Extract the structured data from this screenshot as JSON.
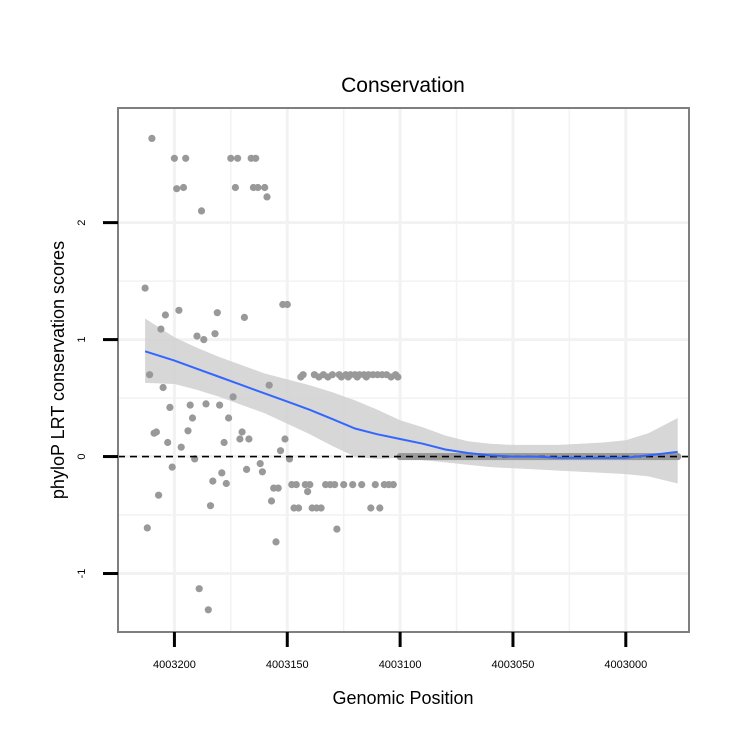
{
  "chart_data": {
    "type": "scatter",
    "title": "Conservation",
    "xlabel": "Genomic Position",
    "ylabel": "phyloP LRT conservation scores",
    "x_reversed": true,
    "xlim": [
      4003225,
      4002972
    ],
    "ylim": [
      -1.5,
      2.98
    ],
    "x_ticks": [
      4003200,
      4003150,
      4003100,
      4003050,
      4003000
    ],
    "x_tick_labels": [
      "4003200",
      "4003150",
      "4003100",
      "4003050",
      "4003000"
    ],
    "y_ticks": [
      -1,
      0,
      1,
      2
    ],
    "y_tick_labels": [
      "-1",
      "0",
      "1",
      "2"
    ],
    "reference_line": {
      "y": 0,
      "style": "dashed"
    },
    "colors": {
      "points": "#999999",
      "smooth": "#3366ff",
      "ribbon": "#d0d0d0",
      "panel_border": "#7f7f7f",
      "grid": "#f2f2f2"
    },
    "points": [
      {
        "x": 4003213,
        "y": 1.44
      },
      {
        "x": 4003212,
        "y": -0.61
      },
      {
        "x": 4003211,
        "y": 0.7
      },
      {
        "x": 4003210,
        "y": 2.72
      },
      {
        "x": 4003209,
        "y": 0.2
      },
      {
        "x": 4003208,
        "y": 0.21
      },
      {
        "x": 4003207,
        "y": -0.33
      },
      {
        "x": 4003206,
        "y": 1.09
      },
      {
        "x": 4003205,
        "y": 0.59
      },
      {
        "x": 4003204,
        "y": 1.21
      },
      {
        "x": 4003203,
        "y": 0.12
      },
      {
        "x": 4003202,
        "y": 0.42
      },
      {
        "x": 4003201,
        "y": -0.09
      },
      {
        "x": 4003200,
        "y": 2.55
      },
      {
        "x": 4003199,
        "y": 2.29
      },
      {
        "x": 4003198,
        "y": 1.25
      },
      {
        "x": 4003197,
        "y": 0.08
      },
      {
        "x": 4003196,
        "y": 2.3
      },
      {
        "x": 4003195,
        "y": 2.55
      },
      {
        "x": 4003194,
        "y": 0.22
      },
      {
        "x": 4003193,
        "y": 0.44
      },
      {
        "x": 4003192,
        "y": 0.33
      },
      {
        "x": 4003191,
        "y": -0.02
      },
      {
        "x": 4003190,
        "y": 1.03
      },
      {
        "x": 4003189,
        "y": -1.13
      },
      {
        "x": 4003188,
        "y": 2.1
      },
      {
        "x": 4003187,
        "y": 1.0
      },
      {
        "x": 4003186,
        "y": 0.45
      },
      {
        "x": 4003185,
        "y": -1.31
      },
      {
        "x": 4003184,
        "y": -0.42
      },
      {
        "x": 4003183,
        "y": -0.21
      },
      {
        "x": 4003182,
        "y": 1.05
      },
      {
        "x": 4003181,
        "y": 1.23
      },
      {
        "x": 4003180,
        "y": 0.44
      },
      {
        "x": 4003179,
        "y": -0.14
      },
      {
        "x": 4003178,
        "y": 0.12
      },
      {
        "x": 4003177,
        "y": -0.23
      },
      {
        "x": 4003176,
        "y": 0.33
      },
      {
        "x": 4003175,
        "y": 2.55
      },
      {
        "x": 4003174,
        "y": 0.51
      },
      {
        "x": 4003173,
        "y": 2.3
      },
      {
        "x": 4003172,
        "y": 2.55
      },
      {
        "x": 4003171,
        "y": 0.15
      },
      {
        "x": 4003170,
        "y": 0.21
      },
      {
        "x": 4003169,
        "y": 1.19
      },
      {
        "x": 4003168,
        "y": -0.11
      },
      {
        "x": 4003167,
        "y": 0.15
      },
      {
        "x": 4003166,
        "y": 2.55
      },
      {
        "x": 4003165,
        "y": 2.3
      },
      {
        "x": 4003164,
        "y": 2.55
      },
      {
        "x": 4003163,
        "y": 2.3
      },
      {
        "x": 4003162,
        "y": -0.06
      },
      {
        "x": 4003161,
        "y": -0.13
      },
      {
        "x": 4003160,
        "y": 2.3
      },
      {
        "x": 4003159,
        "y": 2.22
      },
      {
        "x": 4003158,
        "y": 0.61
      },
      {
        "x": 4003157,
        "y": -0.38
      },
      {
        "x": 4003156,
        "y": -0.27
      },
      {
        "x": 4003155,
        "y": -0.73
      },
      {
        "x": 4003154,
        "y": -0.27
      },
      {
        "x": 4003153,
        "y": 0.05
      },
      {
        "x": 4003152,
        "y": 1.3
      },
      {
        "x": 4003151,
        "y": 0.15
      },
      {
        "x": 4003150,
        "y": 1.3
      },
      {
        "x": 4003149,
        "y": -0.02
      },
      {
        "x": 4003148,
        "y": -0.24
      },
      {
        "x": 4003147,
        "y": -0.44
      },
      {
        "x": 4003146,
        "y": -0.24
      },
      {
        "x": 4003145,
        "y": -0.44
      },
      {
        "x": 4003144,
        "y": 0.68
      },
      {
        "x": 4003143,
        "y": 0.7
      },
      {
        "x": 4003142,
        "y": -0.24
      },
      {
        "x": 4003141,
        "y": -0.3
      },
      {
        "x": 4003140,
        "y": -0.24
      },
      {
        "x": 4003139,
        "y": -0.44
      },
      {
        "x": 4003138,
        "y": 0.7
      },
      {
        "x": 4003137,
        "y": -0.44
      },
      {
        "x": 4003136,
        "y": 0.68
      },
      {
        "x": 4003135,
        "y": -0.44
      },
      {
        "x": 4003134,
        "y": 0.7
      },
      {
        "x": 4003133,
        "y": -0.24
      },
      {
        "x": 4003132,
        "y": 0.68
      },
      {
        "x": 4003131,
        "y": -0.24
      },
      {
        "x": 4003130,
        "y": 0.7
      },
      {
        "x": 4003129,
        "y": -0.24
      },
      {
        "x": 4003128,
        "y": -0.62
      },
      {
        "x": 4003127,
        "y": 0.7
      },
      {
        "x": 4003126,
        "y": 0.68
      },
      {
        "x": 4003125,
        "y": -0.24
      },
      {
        "x": 4003124,
        "y": 0.7
      },
      {
        "x": 4003123,
        "y": 0.68
      },
      {
        "x": 4003122,
        "y": 0.7
      },
      {
        "x": 4003121,
        "y": -0.24
      },
      {
        "x": 4003120,
        "y": 0.7
      },
      {
        "x": 4003119,
        "y": 0.68
      },
      {
        "x": 4003118,
        "y": 0.7
      },
      {
        "x": 4003117,
        "y": -0.24
      },
      {
        "x": 4003116,
        "y": 0.7
      },
      {
        "x": 4003115,
        "y": 0.68
      },
      {
        "x": 4003114,
        "y": 0.7
      },
      {
        "x": 4003113,
        "y": -0.44
      },
      {
        "x": 4003112,
        "y": 0.7
      },
      {
        "x": 4003111,
        "y": -0.24
      },
      {
        "x": 4003110,
        "y": 0.7
      },
      {
        "x": 4003109,
        "y": -0.44
      },
      {
        "x": 4003108,
        "y": 0.7
      },
      {
        "x": 4003107,
        "y": -0.24
      },
      {
        "x": 4003106,
        "y": 0.7
      },
      {
        "x": 4003105,
        "y": -0.24
      },
      {
        "x": 4003104,
        "y": 0.68
      },
      {
        "x": 4003103,
        "y": -0.24
      },
      {
        "x": 4003102,
        "y": 0.7
      },
      {
        "x": 4003101,
        "y": 0.68
      },
      {
        "x": 4003100,
        "y": 0.0
      },
      {
        "x": 4003099,
        "y": 0.0
      },
      {
        "x": 4003098,
        "y": 0.0
      },
      {
        "x": 4003097,
        "y": 0.0
      },
      {
        "x": 4003096,
        "y": 0.0
      },
      {
        "x": 4003095,
        "y": 0.0
      },
      {
        "x": 4003094,
        "y": 0.0
      },
      {
        "x": 4003093,
        "y": 0.0
      },
      {
        "x": 4003092,
        "y": 0.0
      },
      {
        "x": 4003091,
        "y": 0.0
      },
      {
        "x": 4003090,
        "y": 0.0
      },
      {
        "x": 4003089,
        "y": 0.0
      },
      {
        "x": 4003088,
        "y": 0.0
      },
      {
        "x": 4003087,
        "y": 0.0
      },
      {
        "x": 4003086,
        "y": 0.0
      },
      {
        "x": 4003085,
        "y": 0.0
      },
      {
        "x": 4003084,
        "y": 0.0
      },
      {
        "x": 4003083,
        "y": 0.0
      },
      {
        "x": 4003082,
        "y": 0.0
      },
      {
        "x": 4003081,
        "y": 0.0
      },
      {
        "x": 4003080,
        "y": 0.0
      },
      {
        "x": 4003079,
        "y": 0.0
      },
      {
        "x": 4003078,
        "y": 0.0
      },
      {
        "x": 4003077,
        "y": 0.0
      },
      {
        "x": 4003076,
        "y": 0.0
      },
      {
        "x": 4003075,
        "y": 0.0
      },
      {
        "x": 4003074,
        "y": 0.0
      },
      {
        "x": 4003073,
        "y": 0.0
      },
      {
        "x": 4003072,
        "y": 0.0
      },
      {
        "x": 4003071,
        "y": 0.0
      },
      {
        "x": 4003070,
        "y": 0.0
      },
      {
        "x": 4003069,
        "y": 0.0
      },
      {
        "x": 4003068,
        "y": 0.0
      },
      {
        "x": 4003067,
        "y": 0.0
      },
      {
        "x": 4003066,
        "y": 0.0
      },
      {
        "x": 4003065,
        "y": 0.0
      },
      {
        "x": 4003064,
        "y": 0.0
      },
      {
        "x": 4003063,
        "y": 0.0
      },
      {
        "x": 4003062,
        "y": 0.0
      },
      {
        "x": 4003061,
        "y": 0.0
      },
      {
        "x": 4003060,
        "y": 0.0
      },
      {
        "x": 4003059,
        "y": 0.0
      },
      {
        "x": 4003058,
        "y": 0.0
      },
      {
        "x": 4003057,
        "y": 0.0
      },
      {
        "x": 4003056,
        "y": 0.0
      },
      {
        "x": 4003055,
        "y": 0.0
      },
      {
        "x": 4003054,
        "y": 0.0
      },
      {
        "x": 4003053,
        "y": 0.0
      },
      {
        "x": 4003052,
        "y": 0.0
      },
      {
        "x": 4003051,
        "y": 0.0
      },
      {
        "x": 4003050,
        "y": 0.0
      },
      {
        "x": 4003049,
        "y": 0.0
      },
      {
        "x": 4003048,
        "y": 0.0
      },
      {
        "x": 4003047,
        "y": 0.0
      },
      {
        "x": 4003046,
        "y": 0.0
      },
      {
        "x": 4003045,
        "y": 0.0
      },
      {
        "x": 4003044,
        "y": 0.0
      },
      {
        "x": 4003043,
        "y": 0.0
      },
      {
        "x": 4003042,
        "y": 0.0
      },
      {
        "x": 4003041,
        "y": 0.0
      },
      {
        "x": 4003040,
        "y": 0.0
      },
      {
        "x": 4003039,
        "y": 0.0
      },
      {
        "x": 4003038,
        "y": 0.0
      },
      {
        "x": 4003037,
        "y": 0.0
      },
      {
        "x": 4003036,
        "y": 0.0
      },
      {
        "x": 4003035,
        "y": 0.0
      },
      {
        "x": 4003034,
        "y": 0.0
      },
      {
        "x": 4003033,
        "y": 0.0
      },
      {
        "x": 4003032,
        "y": 0.0
      },
      {
        "x": 4003031,
        "y": 0.0
      },
      {
        "x": 4003030,
        "y": 0.0
      },
      {
        "x": 4003029,
        "y": 0.0
      },
      {
        "x": 4003028,
        "y": 0.0
      },
      {
        "x": 4003027,
        "y": 0.0
      },
      {
        "x": 4003026,
        "y": 0.0
      },
      {
        "x": 4003025,
        "y": 0.0
      },
      {
        "x": 4003024,
        "y": 0.0
      },
      {
        "x": 4003023,
        "y": 0.0
      },
      {
        "x": 4003022,
        "y": 0.0
      },
      {
        "x": 4003021,
        "y": 0.0
      },
      {
        "x": 4003020,
        "y": 0.0
      },
      {
        "x": 4003019,
        "y": 0.0
      },
      {
        "x": 4003018,
        "y": 0.0
      },
      {
        "x": 4003017,
        "y": 0.0
      },
      {
        "x": 4003016,
        "y": 0.0
      },
      {
        "x": 4003015,
        "y": 0.0
      },
      {
        "x": 4003014,
        "y": 0.0
      },
      {
        "x": 4003013,
        "y": 0.0
      },
      {
        "x": 4003012,
        "y": 0.0
      },
      {
        "x": 4003011,
        "y": 0.0
      },
      {
        "x": 4003010,
        "y": 0.0
      },
      {
        "x": 4003009,
        "y": 0.0
      },
      {
        "x": 4003008,
        "y": 0.0
      },
      {
        "x": 4003007,
        "y": 0.0
      },
      {
        "x": 4003006,
        "y": 0.0
      },
      {
        "x": 4003005,
        "y": 0.0
      },
      {
        "x": 4003004,
        "y": 0.0
      },
      {
        "x": 4003003,
        "y": 0.0
      },
      {
        "x": 4003002,
        "y": 0.0
      },
      {
        "x": 4003001,
        "y": 0.0
      },
      {
        "x": 4003000,
        "y": 0.0
      },
      {
        "x": 4002999,
        "y": 0.0
      },
      {
        "x": 4002998,
        "y": 0.0
      },
      {
        "x": 4002997,
        "y": 0.0
      },
      {
        "x": 4002996,
        "y": 0.0
      },
      {
        "x": 4002995,
        "y": 0.0
      },
      {
        "x": 4002994,
        "y": 0.0
      },
      {
        "x": 4002993,
        "y": 0.0
      },
      {
        "x": 4002992,
        "y": 0.0
      },
      {
        "x": 4002991,
        "y": 0.0
      },
      {
        "x": 4002990,
        "y": 0.0
      },
      {
        "x": 4002989,
        "y": 0.0
      },
      {
        "x": 4002988,
        "y": 0.0
      },
      {
        "x": 4002987,
        "y": 0.0
      },
      {
        "x": 4002986,
        "y": 0.0
      },
      {
        "x": 4002985,
        "y": 0.0
      },
      {
        "x": 4002984,
        "y": 0.0
      },
      {
        "x": 4002983,
        "y": 0.0
      },
      {
        "x": 4002982,
        "y": 0.0
      },
      {
        "x": 4002981,
        "y": 0.0
      },
      {
        "x": 4002980,
        "y": 0.0
      },
      {
        "x": 4002979,
        "y": 0.0
      },
      {
        "x": 4002978,
        "y": 0.0
      },
      {
        "x": 4002977,
        "y": 0.0
      }
    ],
    "smooth_fit": {
      "x": [
        4003213,
        4003200,
        4003190,
        4003180,
        4003170,
        4003160,
        4003150,
        4003140,
        4003130,
        4003120,
        4003110,
        4003100,
        4003090,
        4003080,
        4003070,
        4003060,
        4003050,
        4003040,
        4003030,
        4003020,
        4003010,
        4003000,
        4002990,
        4002977
      ],
      "y": [
        0.9,
        0.82,
        0.75,
        0.68,
        0.61,
        0.54,
        0.47,
        0.4,
        0.32,
        0.24,
        0.19,
        0.15,
        0.11,
        0.06,
        0.03,
        0.01,
        0.0,
        0.0,
        -0.01,
        -0.01,
        -0.01,
        -0.01,
        0.01,
        0.04
      ],
      "lower": [
        0.63,
        0.62,
        0.57,
        0.51,
        0.44,
        0.37,
        0.28,
        0.19,
        0.09,
        0.0,
        -0.02,
        -0.01,
        -0.03,
        -0.05,
        -0.07,
        -0.09,
        -0.1,
        -0.11,
        -0.12,
        -0.13,
        -0.14,
        -0.15,
        -0.17,
        -0.23
      ],
      "upper": [
        1.18,
        1.02,
        0.93,
        0.85,
        0.78,
        0.71,
        0.66,
        0.61,
        0.55,
        0.48,
        0.4,
        0.31,
        0.25,
        0.18,
        0.13,
        0.11,
        0.1,
        0.1,
        0.1,
        0.11,
        0.12,
        0.14,
        0.2,
        0.33
      ]
    }
  }
}
